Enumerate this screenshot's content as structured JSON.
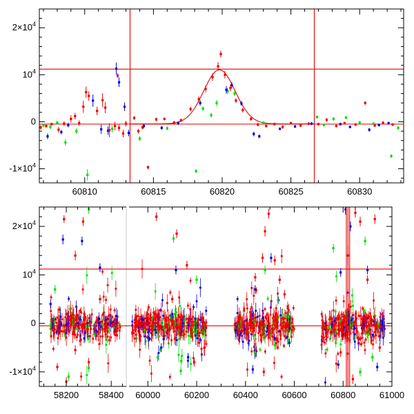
{
  "colors": {
    "red": "#ee0000",
    "green": "#00dd00",
    "blue": "#0000dd",
    "line": "#e00000",
    "axis": "#000000"
  },
  "chart_data": [
    {
      "type": "scatter",
      "xlim": [
        60806.7,
        60833.2
      ],
      "ylim": [
        -13000,
        24000
      ],
      "x_ticks": [
        60810,
        60815,
        60820,
        60825,
        60830
      ],
      "x_tick_labels": [
        "60810",
        "60815",
        "60820",
        "60825",
        "60830"
      ],
      "y_ticks": [
        -10000,
        0,
        10000,
        20000
      ],
      "y_tick_labels": [
        {
          "mant": "-1×10",
          "exp": "4"
        },
        {
          "mant": "0",
          "exp": ""
        },
        {
          "mant": "10",
          "exp": "4"
        },
        {
          "mant": "2×10",
          "exp": "4"
        }
      ],
      "horizontal_lines": [
        11200,
        -500
      ],
      "vertical_lines": [
        60813.3,
        60826.7
      ],
      "model_curve": {
        "type": "gaussian_peak",
        "center": 60819.8,
        "amplitude": 11500,
        "sigma": 1.15,
        "baseline": -450
      },
      "series": [
        {
          "color": "red",
          "points": [
            [
              60806.8,
              -1200,
              500
            ],
            [
              60807.2,
              -900,
              400
            ],
            [
              60807.6,
              -500,
              300
            ],
            [
              60808.1,
              -1700,
              600
            ],
            [
              60808.5,
              -400,
              500
            ],
            [
              60809.0,
              600,
              800
            ],
            [
              60809.3,
              1200,
              700
            ],
            [
              60809.6,
              -300,
              600
            ],
            [
              60809.9,
              3200,
              1300
            ],
            [
              60810.1,
              6300,
              1200
            ],
            [
              60810.3,
              5500,
              1000
            ],
            [
              60810.9,
              2300,
              900
            ],
            [
              60811.3,
              4600,
              1500
            ],
            [
              60811.5,
              3000,
              1200
            ],
            [
              60811.8,
              -1800,
              1500
            ],
            [
              60812.2,
              -900,
              900
            ],
            [
              60812.5,
              -1300,
              700
            ],
            [
              60812.8,
              -2500,
              800
            ],
            [
              60813.0,
              -400,
              600
            ],
            [
              60813.9,
              -2000,
              500
            ],
            [
              60814.2,
              -1200,
              400
            ],
            [
              60814.6,
              -9700,
              400
            ],
            [
              60815.2,
              500,
              400
            ],
            [
              60815.8,
              600,
              300
            ],
            [
              60816.5,
              -200,
              400
            ],
            [
              60817.0,
              300,
              400
            ],
            [
              60817.7,
              2700,
              500
            ],
            [
              60818.3,
              4800,
              600
            ],
            [
              60818.8,
              7000,
              700
            ],
            [
              60819.3,
              9500,
              800
            ],
            [
              60819.7,
              11800,
              900
            ],
            [
              60819.9,
              14400,
              700
            ],
            [
              60820.2,
              10000,
              800
            ],
            [
              60820.6,
              7200,
              700
            ],
            [
              60821.0,
              4500,
              500
            ],
            [
              60821.5,
              2500,
              500
            ],
            [
              60822.1,
              600,
              400
            ],
            [
              60822.6,
              -600,
              400
            ],
            [
              60823.2,
              -900,
              300
            ],
            [
              60823.8,
              -500,
              300
            ],
            [
              60824.4,
              -1100,
              400
            ],
            [
              60825.0,
              -300,
              300
            ],
            [
              60825.7,
              -800,
              300
            ],
            [
              60826.3,
              -400,
              300
            ],
            [
              60827.0,
              -500,
              300
            ],
            [
              60827.6,
              400,
              400
            ],
            [
              60828.3,
              -900,
              300
            ],
            [
              60828.9,
              -300,
              300
            ],
            [
              60829.7,
              -600,
              300
            ],
            [
              60830.4,
              4000,
              400
            ],
            [
              60831.1,
              -800,
              300
            ],
            [
              60831.7,
              -200,
              300
            ],
            [
              60832.4,
              -600,
              300
            ],
            [
              60813.6,
              800,
              400
            ],
            [
              60812.4,
              9800,
              500
            ]
          ]
        },
        {
          "color": "green",
          "points": [
            [
              60807.0,
              -800,
              400
            ],
            [
              60807.5,
              -1100,
              500
            ],
            [
              60808.0,
              -200,
              400
            ],
            [
              60808.6,
              -4400,
              700
            ],
            [
              60809.4,
              -2000,
              600
            ],
            [
              60810.2,
              -11300,
              1200
            ],
            [
              60812.0,
              -1500,
              800
            ],
            [
              60814.0,
              -3600,
              500
            ],
            [
              60816.0,
              -1400,
              400
            ],
            [
              60818.1,
              -10500,
              400
            ],
            [
              60818.6,
              2800,
              500
            ],
            [
              60819.2,
              1400,
              500
            ],
            [
              60819.6,
              4000,
              600
            ],
            [
              60820.4,
              6500,
              700
            ],
            [
              60820.9,
              6000,
              500
            ],
            [
              60823.0,
              -200,
              300
            ],
            [
              60826.9,
              1000,
              300
            ],
            [
              60827.4,
              -700,
              300
            ],
            [
              60828.1,
              600,
              400
            ],
            [
              60829.0,
              900,
              300
            ],
            [
              60830.0,
              -200,
              400
            ],
            [
              60831.0,
              -400,
              300
            ],
            [
              60832.3,
              -7300,
              400
            ],
            [
              60832.8,
              -1300,
              400
            ]
          ]
        },
        {
          "color": "blue",
          "points": [
            [
              60807.3,
              -3100,
              600
            ],
            [
              60808.3,
              -2200,
              500
            ],
            [
              60808.8,
              -700,
              500
            ],
            [
              60810.6,
              4500,
              1300
            ],
            [
              60811.2,
              -1600,
              1000
            ],
            [
              60811.7,
              -1900,
              900
            ],
            [
              60812.3,
              11300,
              1300
            ],
            [
              60812.5,
              8400,
              1000
            ],
            [
              60812.9,
              3200,
              900
            ],
            [
              60813.2,
              -2400,
              700
            ],
            [
              60814.3,
              -900,
              500
            ],
            [
              60815.6,
              -1300,
              400
            ],
            [
              60816.8,
              -300,
              400
            ],
            [
              60818.4,
              4000,
              600
            ],
            [
              60820.3,
              6800,
              800
            ],
            [
              60820.7,
              7800,
              600
            ],
            [
              60821.4,
              3900,
              500
            ],
            [
              60822.3,
              -2600,
              500
            ],
            [
              60822.7,
              -3100,
              400
            ],
            [
              60824.2,
              -1500,
              300
            ],
            [
              60825.3,
              -1000,
              300
            ],
            [
              60826.5,
              -400,
              300
            ],
            [
              60828.6,
              -500,
              300
            ],
            [
              60829.3,
              -1100,
              300
            ],
            [
              60830.7,
              -1700,
              400
            ],
            [
              60831.4,
              -700,
              300
            ],
            [
              60832.1,
              -300,
              300
            ]
          ]
        }
      ]
    },
    {
      "type": "scatter",
      "xlim": [
        58080,
        61000
      ],
      "ylim": [
        -13000,
        24000
      ],
      "x_ticks": [
        58200,
        58400,
        60000,
        60200,
        60400,
        60600,
        60800,
        61000
      ],
      "x_tick_labels": [
        "58200",
        "58400",
        "60000",
        "60200",
        "60400",
        "60600",
        "60800",
        "61000"
      ],
      "y_ticks": [
        -10000,
        0,
        10000,
        20000
      ],
      "y_tick_labels": [
        {
          "mant": "-1×10",
          "exp": "4"
        },
        {
          "mant": "0",
          "exp": ""
        },
        {
          "mant": "10",
          "exp": "4"
        },
        {
          "mant": "2×10",
          "exp": "4"
        }
      ],
      "horizontal_lines": [
        11200,
        -500
      ],
      "vertical_lines": [
        60813.3,
        60819.9,
        60826.7
      ],
      "x_break": {
        "left_range": [
          58080,
          58470
        ],
        "right_range": [
          59920,
          61000
        ]
      },
      "seasons": [
        {
          "start": 58130,
          "end": 58440,
          "sigma": 2400,
          "count": 280
        },
        {
          "start": 59935,
          "end": 60240,
          "sigma": 2400,
          "count": 340
        },
        {
          "start": 60355,
          "end": 60600,
          "sigma": 2300,
          "count": 300
        },
        {
          "start": 60710,
          "end": 60970,
          "sigma": 2500,
          "count": 300
        }
      ],
      "series": [
        {
          "color": "red",
          "points": [
            [
              58190,
              21500,
              800
            ],
            [
              58275,
              21000,
              900
            ],
            [
              58240,
              -5500,
              1000
            ],
            [
              58200,
              -12000,
              900
            ],
            [
              58160,
              -9000,
              800
            ],
            [
              58300,
              -8000,
              900
            ],
            [
              58350,
              5000,
              900
            ],
            [
              58240,
              14000,
              1000
            ],
            [
              60035,
              22000,
              900
            ],
            [
              60100,
              5000,
              800
            ],
            [
              60190,
              -8000,
              900
            ],
            [
              60160,
              12000,
              900
            ],
            [
              60210,
              -4000,
              900
            ],
            [
              60470,
              13500,
              1000
            ],
            [
              60480,
              19000,
              1100
            ],
            [
              60495,
              22600,
              1000
            ],
            [
              60520,
              13000,
              1000
            ],
            [
              60540,
              9000,
              900
            ],
            [
              60560,
              6000,
              900
            ],
            [
              60475,
              -10000,
              900
            ],
            [
              60820,
              14000,
              2000
            ],
            [
              60850,
              22800,
              1000
            ],
            [
              60870,
              21000,
              1000
            ],
            [
              60930,
              21500,
              1000
            ],
            [
              60900,
              9000,
              900
            ],
            [
              60790,
              -6000,
              900
            ],
            [
              60840,
              -11500,
              1000
            ],
            [
              60950,
              -5000,
              900
            ],
            [
              60440,
              9500,
              900
            ],
            [
              60118,
              18500,
              900
            ]
          ]
        },
        {
          "color": "green",
          "points": [
            [
              58300,
              23500,
              900
            ],
            [
              58300,
              -9200,
              800
            ],
            [
              58210,
              -11000,
              900
            ],
            [
              58150,
              7000,
              900
            ],
            [
              60105,
              17500,
              900
            ],
            [
              60135,
              -9800,
              900
            ],
            [
              60040,
              -7000,
              900
            ],
            [
              60200,
              9000,
              900
            ],
            [
              60440,
              -6000,
              900
            ],
            [
              60480,
              11000,
              900
            ],
            [
              60520,
              -4500,
              900
            ],
            [
              60760,
              15500,
              900
            ],
            [
              60770,
              -4000,
              900
            ],
            [
              60890,
              17000,
              900
            ],
            [
              60920,
              -7000,
              900
            ],
            [
              60870,
              -10000,
              900
            ],
            [
              60575,
              -3500,
              900
            ]
          ]
        },
        {
          "color": "blue",
          "points": [
            [
              58185,
              17300,
              1000
            ],
            [
              58270,
              17000,
              900
            ],
            [
              58350,
              11500,
              900
            ],
            [
              58130,
              4000,
              900
            ],
            [
              60115,
              11000,
              900
            ],
            [
              60055,
              -5000,
              900
            ],
            [
              60165,
              -7000,
              900
            ],
            [
              60440,
              7000,
              900
            ],
            [
              60505,
              13500,
              1000
            ],
            [
              60430,
              -9500,
              900
            ],
            [
              60580,
              -4000,
              900
            ],
            [
              60810,
              23500,
              1100
            ],
            [
              60790,
              10500,
              900
            ],
            [
              60830,
              20000,
              1000
            ],
            [
              60900,
              11000,
              900
            ],
            [
              60940,
              -9000,
              900
            ],
            [
              60780,
              -8500,
              900
            ]
          ]
        }
      ]
    }
  ]
}
